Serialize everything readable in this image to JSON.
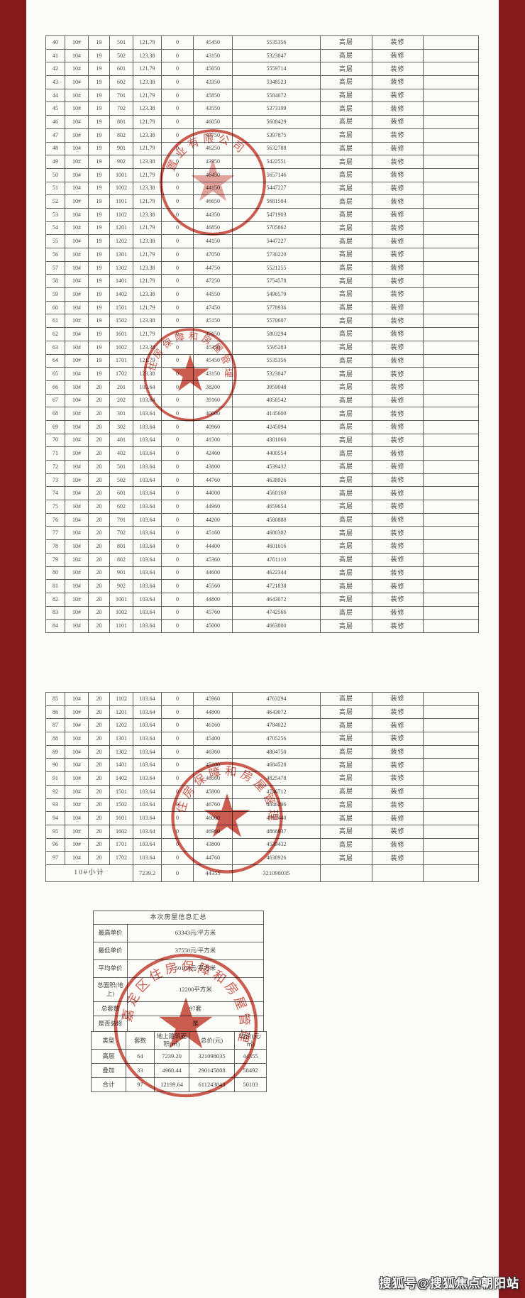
{
  "watermark": "搜狐号@搜狐焦点朝阳站",
  "colors": {
    "background_red": "#851a1d",
    "paper": "#fbfbf8",
    "stamp_red": "#c5392b"
  },
  "table1": {
    "rows": [
      [
        "40",
        "10#",
        "19",
        "501",
        "121.79",
        "0",
        "45450",
        "5535356",
        "高层",
        "装修",
        ""
      ],
      [
        "41",
        "10#",
        "19",
        "502",
        "123.38",
        "0",
        "43150",
        "5323847",
        "高层",
        "装修",
        ""
      ],
      [
        "42",
        "10#",
        "19",
        "601",
        "121.79",
        "0",
        "45650",
        "5559714",
        "高层",
        "装修",
        ""
      ],
      [
        "43",
        "10#",
        "19",
        "602",
        "123.38",
        "0",
        "43350",
        "5348523",
        "高层",
        "装修",
        ""
      ],
      [
        "44",
        "10#",
        "19",
        "701",
        "121.79",
        "0",
        "45850",
        "5584072",
        "高层",
        "装修",
        ""
      ],
      [
        "45",
        "10#",
        "19",
        "702",
        "123.38",
        "0",
        "43550",
        "5373199",
        "高层",
        "装修",
        ""
      ],
      [
        "46",
        "10#",
        "19",
        "801",
        "121.79",
        "0",
        "46050",
        "5608429",
        "高层",
        "装修",
        ""
      ],
      [
        "47",
        "10#",
        "19",
        "802",
        "123.38",
        "0",
        "43750",
        "5397875",
        "高层",
        "装修",
        ""
      ],
      [
        "48",
        "10#",
        "19",
        "901",
        "121.79",
        "0",
        "46250",
        "5632788",
        "高层",
        "装修",
        ""
      ],
      [
        "49",
        "10#",
        "19",
        "902",
        "123.38",
        "0",
        "43950",
        "5422551",
        "高层",
        "装修",
        ""
      ],
      [
        "50",
        "10#",
        "19",
        "1001",
        "121.79",
        "0",
        "46450",
        "5657146",
        "高层",
        "装修",
        ""
      ],
      [
        "51",
        "10#",
        "19",
        "1002",
        "123.38",
        "0",
        "44150",
        "5447227",
        "高层",
        "装修",
        ""
      ],
      [
        "52",
        "10#",
        "19",
        "1101",
        "121.79",
        "0",
        "46650",
        "5681504",
        "高层",
        "装修",
        ""
      ],
      [
        "53",
        "10#",
        "19",
        "1102",
        "123.38",
        "0",
        "44350",
        "5471903",
        "高层",
        "装修",
        ""
      ],
      [
        "54",
        "10#",
        "19",
        "1201",
        "121.79",
        "0",
        "46850",
        "5705862",
        "高层",
        "装修",
        ""
      ],
      [
        "55",
        "10#",
        "19",
        "1202",
        "123.38",
        "0",
        "44150",
        "5447227",
        "高层",
        "装修",
        ""
      ],
      [
        "56",
        "10#",
        "19",
        "1301",
        "121.79",
        "0",
        "47050",
        "5730220",
        "高层",
        "装修",
        ""
      ],
      [
        "57",
        "10#",
        "19",
        "1302",
        "123.38",
        "0",
        "44750",
        "5521255",
        "高层",
        "装修",
        ""
      ],
      [
        "58",
        "10#",
        "19",
        "1401",
        "121.79",
        "0",
        "47250",
        "5754578",
        "高层",
        "装修",
        ""
      ],
      [
        "59",
        "10#",
        "19",
        "1402",
        "123.38",
        "0",
        "44550",
        "5496579",
        "高层",
        "装修",
        ""
      ],
      [
        "60",
        "10#",
        "19",
        "1501",
        "121.79",
        "0",
        "47450",
        "5778936",
        "高层",
        "装修",
        ""
      ],
      [
        "61",
        "10#",
        "19",
        "1502",
        "123.38",
        "0",
        "45150",
        "5570607",
        "高层",
        "装修",
        ""
      ],
      [
        "62",
        "10#",
        "19",
        "1601",
        "121.79",
        "0",
        "47650",
        "5803294",
        "高层",
        "装修",
        ""
      ],
      [
        "63",
        "10#",
        "19",
        "1602",
        "123.38",
        "0",
        "45350",
        "5595283",
        "高层",
        "装修",
        ""
      ],
      [
        "64",
        "10#",
        "19",
        "1701",
        "121.79",
        "0",
        "45450",
        "5535356",
        "高层",
        "装修",
        ""
      ],
      [
        "65",
        "10#",
        "19",
        "1702",
        "123.38",
        "0",
        "43150",
        "5323847",
        "高层",
        "装修",
        ""
      ],
      [
        "66",
        "10#",
        "20",
        "201",
        "103.64",
        "0",
        "38200",
        "3959048",
        "高层",
        "装修",
        ""
      ],
      [
        "67",
        "10#",
        "20",
        "202",
        "103.64",
        "0",
        "39160",
        "4058542",
        "高层",
        "装修",
        ""
      ],
      [
        "68",
        "10#",
        "20",
        "301",
        "103.64",
        "0",
        "40000",
        "4145600",
        "高层",
        "装修",
        ""
      ],
      [
        "69",
        "10#",
        "20",
        "302",
        "103.64",
        "0",
        "40960",
        "4245094",
        "高层",
        "装修",
        ""
      ],
      [
        "70",
        "10#",
        "20",
        "401",
        "103.64",
        "0",
        "41500",
        "4301060",
        "高层",
        "装修",
        ""
      ],
      [
        "71",
        "10#",
        "20",
        "402",
        "103.64",
        "0",
        "42460",
        "4400554",
        "高层",
        "装修",
        ""
      ],
      [
        "72",
        "10#",
        "20",
        "501",
        "103.64",
        "0",
        "43800",
        "4539432",
        "高层",
        "装修",
        ""
      ],
      [
        "73",
        "10#",
        "20",
        "502",
        "103.64",
        "0",
        "44760",
        "4638926",
        "高层",
        "装修",
        ""
      ],
      [
        "74",
        "10#",
        "20",
        "601",
        "103.64",
        "0",
        "44000",
        "4560160",
        "高层",
        "装修",
        ""
      ],
      [
        "75",
        "10#",
        "20",
        "602",
        "103.64",
        "0",
        "44960",
        "4659654",
        "高层",
        "装修",
        ""
      ],
      [
        "76",
        "10#",
        "20",
        "701",
        "103.64",
        "0",
        "44200",
        "4580888",
        "高层",
        "装修",
        ""
      ],
      [
        "77",
        "10#",
        "20",
        "702",
        "103.64",
        "0",
        "45160",
        "4680382",
        "高层",
        "装修",
        ""
      ],
      [
        "78",
        "10#",
        "20",
        "801",
        "103.64",
        "0",
        "44400",
        "4601616",
        "高层",
        "装修",
        ""
      ],
      [
        "79",
        "10#",
        "20",
        "802",
        "103.64",
        "0",
        "45360",
        "4701110",
        "高层",
        "装修",
        ""
      ],
      [
        "80",
        "10#",
        "20",
        "901",
        "103.64",
        "0",
        "44600",
        "4622344",
        "高层",
        "装修",
        ""
      ],
      [
        "81",
        "10#",
        "20",
        "902",
        "103.64",
        "0",
        "45560",
        "4721838",
        "高层",
        "装修",
        ""
      ],
      [
        "82",
        "10#",
        "20",
        "1001",
        "103.64",
        "0",
        "44800",
        "4643072",
        "高层",
        "装修",
        ""
      ],
      [
        "83",
        "10#",
        "20",
        "1002",
        "103.64",
        "0",
        "45760",
        "4742566",
        "高层",
        "装修",
        ""
      ],
      [
        "84",
        "10#",
        "20",
        "1101",
        "103.64",
        "0",
        "45000",
        "4663800",
        "高层",
        "装修",
        ""
      ]
    ]
  },
  "table2": {
    "rows": [
      [
        "85",
        "10#",
        "20",
        "1102",
        "103.64",
        "0",
        "45960",
        "4763294",
        "高层",
        "装修",
        ""
      ],
      [
        "86",
        "10#",
        "20",
        "1201",
        "103.64",
        "0",
        "44800",
        "4643072",
        "高层",
        "装修",
        ""
      ],
      [
        "87",
        "10#",
        "20",
        "1202",
        "103.64",
        "0",
        "46160",
        "4784022",
        "高层",
        "装修",
        ""
      ],
      [
        "88",
        "10#",
        "20",
        "1301",
        "103.64",
        "0",
        "45400",
        "4705256",
        "高层",
        "装修",
        ""
      ],
      [
        "89",
        "10#",
        "20",
        "1302",
        "103.64",
        "0",
        "46360",
        "4804750",
        "高层",
        "装修",
        ""
      ],
      [
        "90",
        "10#",
        "20",
        "1401",
        "103.64",
        "0",
        "45200",
        "4684528",
        "高层",
        "装修",
        ""
      ],
      [
        "91",
        "10#",
        "20",
        "1402",
        "103.64",
        "0",
        "46560",
        "4825478",
        "高层",
        "装修",
        ""
      ],
      [
        "92",
        "10#",
        "20",
        "1501",
        "103.64",
        "0",
        "45800",
        "4746712",
        "高层",
        "装修",
        ""
      ],
      [
        "93",
        "10#",
        "20",
        "1502",
        "103.64",
        "0",
        "46760",
        "4846206",
        "高层",
        "装修",
        ""
      ],
      [
        "94",
        "10#",
        "20",
        "1601",
        "103.64",
        "0",
        "46000",
        "4767440",
        "高层",
        "装修",
        ""
      ],
      [
        "95",
        "10#",
        "20",
        "1602",
        "103.64",
        "0",
        "46960",
        "4866937",
        "高层",
        "装修",
        ""
      ],
      [
        "96",
        "10#",
        "20",
        "1701",
        "103.64",
        "0",
        "43800",
        "4539432",
        "高层",
        "装修",
        ""
      ],
      [
        "97",
        "10#",
        "20",
        "1702",
        "103.64",
        "0",
        "44760",
        "4638926",
        "高层",
        "装修",
        ""
      ]
    ],
    "subtotal": {
      "label": "10#小计",
      "area": "7239.2",
      "zero": "0",
      "unit_price": "44355",
      "total_price": "321098035"
    }
  },
  "summary": {
    "title": "本次房屋信息汇总",
    "rows": [
      [
        "最高单价",
        "63343元/平方米"
      ],
      [
        "最低单价",
        "37550元/平方米"
      ],
      [
        "平均单价",
        "50103元/平方米"
      ],
      [
        "总面积(地上)",
        "12200平方米"
      ],
      [
        "总套数",
        "97套"
      ],
      [
        "是否装修",
        "是"
      ]
    ]
  },
  "stats_table": {
    "headers": [
      "类型",
      "套数",
      "地上建筑面积(㎡)",
      "总价(元)",
      "均价(元/㎡)"
    ],
    "rows": [
      [
        "高层",
        "64",
        "7239.20",
        "321098035",
        "44355"
      ],
      [
        "叠加",
        "33",
        "4960.44",
        "290145808",
        "58492"
      ],
      [
        "合计",
        "97",
        "12199.64",
        "611243843",
        "50103"
      ]
    ]
  },
  "stamps": [
    {
      "ring_text": "置业有限公司"
    },
    {
      "ring_text": "住房保障和房屋管理"
    },
    {
      "ring_text": "住房保障和房屋管理"
    },
    {
      "ring_text": "嘉定区住房保障和房屋管理"
    }
  ]
}
